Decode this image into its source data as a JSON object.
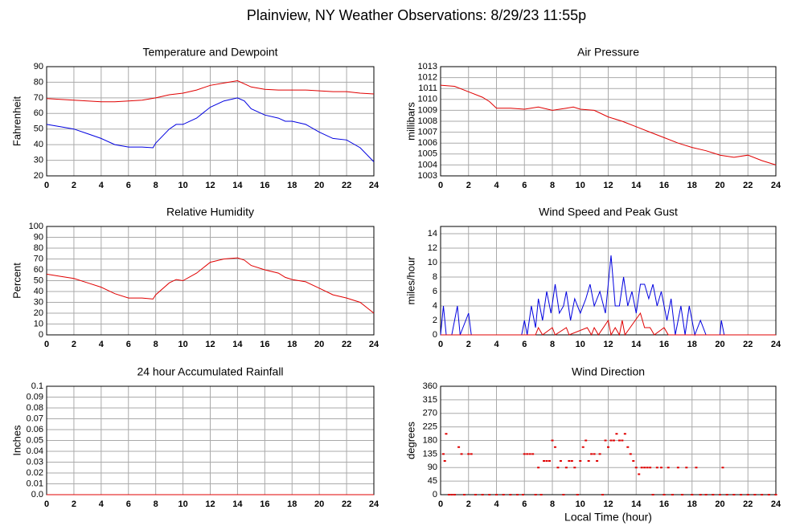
{
  "title": "Plainview, NY Weather Observations: 8/29/23 11:55p",
  "chart_data": [
    {
      "type": "line",
      "title": "Temperature and Dewpoint",
      "ylabel": "Fahrenheit",
      "xlim": [
        0,
        24
      ],
      "xticks": [
        0,
        2,
        4,
        6,
        8,
        10,
        12,
        14,
        16,
        18,
        20,
        22,
        24
      ],
      "ylim": [
        20,
        90
      ],
      "yticks": [
        20,
        30,
        40,
        50,
        60,
        70,
        80,
        90
      ],
      "grid": true,
      "series": [
        {
          "color": "#e00000",
          "x": [
            0,
            1,
            2,
            3,
            4,
            5,
            6,
            7,
            8,
            9,
            10,
            11,
            12,
            13,
            14,
            15,
            16,
            17,
            18,
            19,
            20,
            21,
            22,
            23,
            24
          ],
          "values": [
            69.5,
            69,
            68.5,
            68,
            67.5,
            67.5,
            68,
            68.5,
            70,
            72,
            73,
            75,
            78,
            79.5,
            81,
            77,
            75.5,
            75,
            75,
            75,
            74.5,
            74,
            74,
            73,
            72.5
          ]
        },
        {
          "color": "#0000e0",
          "x": [
            0,
            1,
            2,
            3,
            4,
            5,
            6,
            7,
            7.8,
            8,
            9,
            9.5,
            10,
            11,
            12,
            13,
            14,
            14.5,
            15,
            16,
            17,
            17.5,
            18,
            19,
            20,
            21,
            22,
            23,
            24
          ],
          "values": [
            53,
            51.5,
            50,
            47,
            44,
            40,
            38.5,
            38.5,
            38,
            41,
            50,
            53,
            53,
            57,
            64,
            68,
            70,
            68,
            63,
            59,
            57,
            55,
            55,
            53,
            48,
            44,
            43,
            38,
            29
          ]
        }
      ]
    },
    {
      "type": "line",
      "title": "Air Pressure",
      "ylabel": "millibars",
      "xlim": [
        0,
        24
      ],
      "xticks": [
        0,
        2,
        4,
        6,
        8,
        10,
        12,
        14,
        16,
        18,
        20,
        22,
        24
      ],
      "ylim": [
        1003,
        1013
      ],
      "yticks": [
        1003,
        1004,
        1005,
        1006,
        1007,
        1008,
        1009,
        1010,
        1011,
        1012,
        1013
      ],
      "grid": true,
      "series": [
        {
          "color": "#e00000",
          "x": [
            0,
            1,
            2,
            3,
            3.5,
            4,
            5,
            6,
            7,
            8,
            9,
            9.5,
            10,
            11,
            12,
            13,
            14,
            15,
            16,
            17,
            18,
            19,
            20,
            21,
            22,
            23,
            24
          ],
          "values": [
            1011.3,
            1011.2,
            1010.7,
            1010.2,
            1009.8,
            1009.2,
            1009.2,
            1009.1,
            1009.3,
            1009,
            1009.2,
            1009.3,
            1009.1,
            1009,
            1008.4,
            1008,
            1007.5,
            1007,
            1006.5,
            1006,
            1005.6,
            1005.3,
            1004.9,
            1004.7,
            1004.9,
            1004.4,
            1004
          ]
        }
      ]
    },
    {
      "type": "line",
      "title": "Relative Humidity",
      "ylabel": "Percent",
      "xlim": [
        0,
        24
      ],
      "xticks": [
        0,
        2,
        4,
        6,
        8,
        10,
        12,
        14,
        16,
        18,
        20,
        22,
        24
      ],
      "ylim": [
        0,
        100
      ],
      "yticks": [
        0,
        10,
        20,
        30,
        40,
        50,
        60,
        70,
        80,
        90,
        100
      ],
      "grid": true,
      "series": [
        {
          "color": "#e00000",
          "x": [
            0,
            1,
            2,
            3,
            4,
            5,
            6,
            7,
            7.8,
            8,
            9,
            9.5,
            10,
            11,
            12,
            13,
            14,
            14.5,
            15,
            16,
            17,
            17.5,
            18,
            19,
            20,
            21,
            22,
            23,
            24
          ],
          "values": [
            56,
            54,
            52,
            48,
            44,
            38,
            34,
            34,
            33,
            37,
            48,
            51,
            50,
            57,
            67,
            70,
            71,
            69,
            64,
            60,
            57,
            53,
            51,
            49,
            43,
            37,
            34,
            30,
            20
          ]
        }
      ]
    },
    {
      "type": "line",
      "title": "Wind Speed and Peak Gust",
      "ylabel": "miles/hour",
      "xlim": [
        0,
        24
      ],
      "xticks": [
        0,
        2,
        4,
        6,
        8,
        10,
        12,
        14,
        16,
        18,
        20,
        22,
        24
      ],
      "ylim": [
        0,
        15
      ],
      "yticks": [
        0,
        2,
        4,
        6,
        8,
        10,
        12,
        14
      ],
      "grid": true,
      "series": [
        {
          "color": "#0000e0",
          "x": [
            0,
            0.2,
            0.4,
            0.8,
            1.2,
            1.4,
            2,
            2.2,
            5.8,
            6,
            6.2,
            6.5,
            6.8,
            7,
            7.3,
            7.6,
            7.9,
            8.2,
            8.5,
            8.8,
            9,
            9.3,
            9.6,
            10,
            10.4,
            10.7,
            11,
            11.4,
            11.8,
            12.2,
            12.5,
            12.8,
            13.1,
            13.4,
            13.7,
            14,
            14.3,
            14.6,
            14.9,
            15.2,
            15.5,
            15.8,
            16.2,
            16.5,
            16.8,
            17.2,
            17.5,
            17.8,
            18.2,
            18.6,
            19,
            20,
            20.1,
            20.3,
            24
          ],
          "values": [
            0,
            4,
            0,
            0,
            4,
            0,
            3,
            0,
            0,
            2,
            0,
            4,
            1,
            5,
            2,
            6,
            3,
            7,
            3,
            4,
            6,
            2,
            5,
            3,
            5,
            7,
            4,
            6,
            3,
            11,
            4,
            4,
            8,
            4,
            6,
            3,
            7,
            7,
            5,
            7,
            4,
            6,
            2,
            5,
            0,
            4,
            0,
            4,
            0,
            2,
            0,
            0,
            2,
            0,
            0
          ]
        },
        {
          "color": "#e00000",
          "x": [
            0,
            6.8,
            7,
            7.3,
            8,
            8.2,
            9,
            9.2,
            10.5,
            10.8,
            11,
            11.3,
            12,
            12.2,
            12.5,
            12.8,
            13,
            13.2,
            14.3,
            14.6,
            15,
            15.3,
            16,
            16.3,
            24
          ],
          "values": [
            0,
            0,
            1,
            0,
            1,
            0,
            1,
            0,
            1,
            0,
            1,
            0,
            2,
            0,
            1,
            0,
            2,
            0,
            3,
            1,
            1,
            0,
            1,
            0,
            0
          ]
        }
      ]
    },
    {
      "type": "line",
      "title": "24 hour Accumulated Rainfall",
      "ylabel": "Inches",
      "xlim": [
        0,
        24
      ],
      "xticks": [
        0,
        2,
        4,
        6,
        8,
        10,
        12,
        14,
        16,
        18,
        20,
        22,
        24
      ],
      "ylim": [
        0,
        0.1
      ],
      "yticks": [
        {
          "value": 0,
          "label": "0.0"
        },
        0.01,
        0.02,
        0.03,
        0.04,
        0.05,
        0.06,
        0.07,
        0.08,
        0.09,
        0.1
      ],
      "grid": true,
      "series": [
        {
          "color": "#e00000",
          "x": [
            0,
            24
          ],
          "values": [
            0,
            0
          ]
        }
      ]
    },
    {
      "type": "scatter",
      "title": "Wind Direction",
      "ylabel": "degrees",
      "xlabel": "Local Time (hour)",
      "xlim": [
        0,
        24
      ],
      "xticks": [
        0,
        2,
        4,
        6,
        8,
        10,
        12,
        14,
        16,
        18,
        20,
        22,
        24
      ],
      "ylim": [
        0,
        360
      ],
      "yticks": [
        0,
        45,
        90,
        135,
        180,
        225,
        270,
        315,
        360
      ],
      "grid": true,
      "series": [
        {
          "color": "#e00000",
          "x": [
            0.2,
            0.3,
            0.4,
            0.6,
            0.8,
            1,
            1.3,
            1.5,
            1.7,
            2,
            2.2,
            2.5,
            3,
            3.5,
            4,
            4.5,
            5,
            5.5,
            5.9,
            6,
            6.2,
            6.4,
            6.6,
            6.8,
            7,
            7.2,
            7.4,
            7.6,
            7.8,
            8,
            8.2,
            8.4,
            8.6,
            8.8,
            9,
            9.2,
            9.4,
            9.6,
            9.8,
            10,
            10.2,
            10.4,
            10.6,
            10.8,
            11,
            11.2,
            11.4,
            11.6,
            11.8,
            12,
            12.2,
            12.4,
            12.6,
            12.8,
            13,
            13.2,
            13.4,
            13.6,
            13.8,
            14,
            14.2,
            14.4,
            14.6,
            14.8,
            15,
            15.2,
            15.5,
            15.8,
            16,
            16.3,
            16.6,
            17,
            17.3,
            17.6,
            18,
            18.3,
            18.6,
            19,
            19.5,
            20,
            20.2,
            20.5,
            21,
            21.5,
            22,
            22.5,
            23,
            23.5,
            24
          ],
          "values": [
            135,
            112,
            202,
            0,
            0,
            0,
            158,
            135,
            0,
            135,
            135,
            0,
            0,
            0,
            0,
            0,
            0,
            0,
            0,
            135,
            135,
            135,
            135,
            0,
            90,
            0,
            112,
            112,
            112,
            180,
            158,
            90,
            112,
            0,
            90,
            112,
            112,
            90,
            0,
            112,
            158,
            180,
            112,
            135,
            135,
            112,
            135,
            0,
            180,
            158,
            180,
            180,
            202,
            180,
            180,
            202,
            158,
            135,
            112,
            90,
            68,
            90,
            90,
            90,
            90,
            0,
            90,
            90,
            0,
            90,
            0,
            90,
            0,
            90,
            0,
            90,
            0,
            0,
            0,
            0,
            90,
            0,
            0,
            0,
            0,
            0,
            0,
            0,
            0
          ]
        }
      ]
    }
  ]
}
